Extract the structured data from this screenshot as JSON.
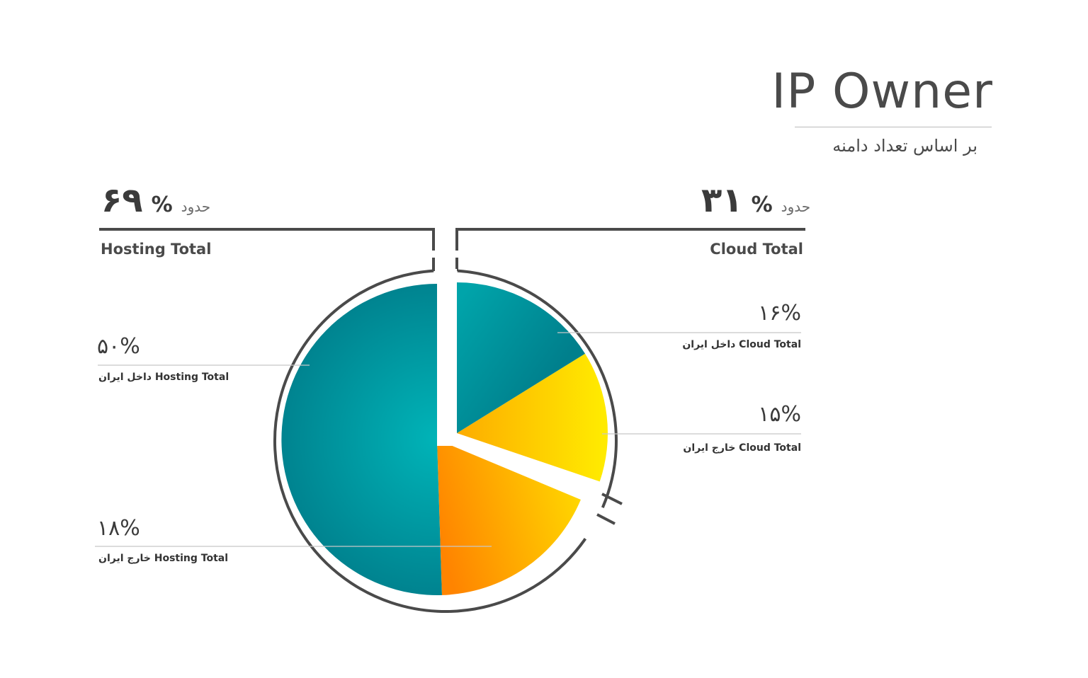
{
  "header": {
    "title": "IP Owner",
    "subtitle": "بر اساس تعداد دامنه"
  },
  "groups": {
    "hosting": {
      "about": "حدود",
      "value": "۶۹",
      "pct_sign": "%",
      "label": "Hosting Total"
    },
    "cloud": {
      "about": "حدود",
      "value": "۳۱",
      "pct_sign": "%",
      "label": "Cloud Total"
    }
  },
  "segments": {
    "hosting_inside": {
      "value_text": "۵۰%",
      "label": "داخل ایران Hosting Total"
    },
    "hosting_outside": {
      "value_text": "۱۸%",
      "label": "خارج ایران Hosting Total"
    },
    "cloud_inside": {
      "value_text": "۱۶%",
      "label": "داخل ایران Cloud Total"
    },
    "cloud_outside": {
      "value_text": "۱۵%",
      "label": "خارج ایران Cloud Total"
    }
  },
  "colors": {
    "teal_light": "#00b4b8",
    "teal_dark": "#007f8c",
    "yellow": "#ffea00",
    "orange": "#ff8800",
    "amber": "#fbb900",
    "outline": "#4a4a4a",
    "leader": "#c8c8c8"
  },
  "chart_data": {
    "type": "pie",
    "title": "IP Owner",
    "subtitle": "بر اساس تعداد دامنه",
    "groups": [
      {
        "name": "Hosting Total",
        "value": 69
      },
      {
        "name": "Cloud Total",
        "value": 31
      }
    ],
    "slices": [
      {
        "label": "داخل ایران Hosting Total",
        "value": 50
      },
      {
        "label": "خارج ایران Hosting Total",
        "value": 18
      },
      {
        "label": "خارج ایران Cloud Total",
        "value": 15
      },
      {
        "label": "داخل ایران Cloud Total",
        "value": 16
      }
    ]
  }
}
